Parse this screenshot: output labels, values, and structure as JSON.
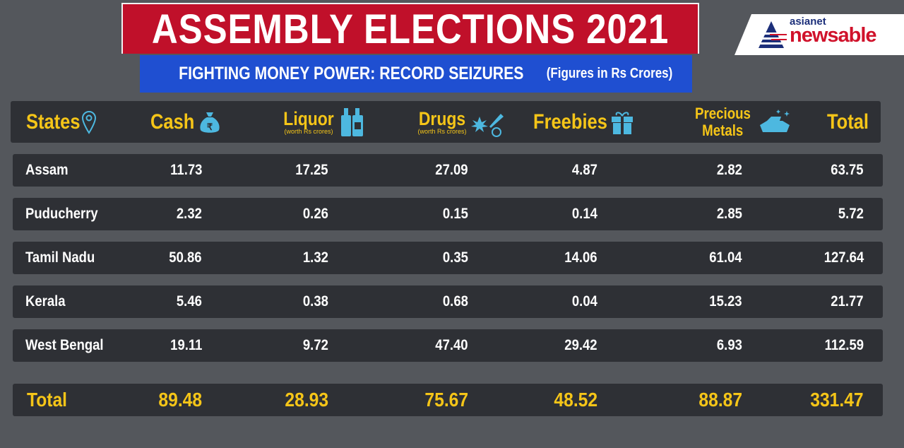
{
  "header": {
    "title": "ASSEMBLY ELECTIONS 2021",
    "subtitle": "FIGHTING MONEY POWER: RECORD SEIZURES",
    "units_note": "(Figures in Rs Crores)",
    "logo_top": "asianet",
    "logo_bottom": "newsable"
  },
  "colors": {
    "background": "#54575c",
    "row": "#2e3035",
    "accent": "#f5c518",
    "banner_red": "#c0102a",
    "banner_blue": "#1f4fd1",
    "icon": "#4db8e0"
  },
  "chart_data": {
    "type": "table",
    "title": "ASSEMBLY ELECTIONS 2021",
    "subtitle": "FIGHTING MONEY POWER: RECORD SEIZURES (Figures in Rs Crores)",
    "columns": [
      {
        "label": "States",
        "icon": "map-pin-icon"
      },
      {
        "label": "Cash",
        "icon": "money-bag-icon"
      },
      {
        "label": "Liquor",
        "note": "(worth Rs crores)",
        "icon": "bottles-icon"
      },
      {
        "label": "Drugs",
        "note": "(worth Rs crores)",
        "icon": "drugs-icon"
      },
      {
        "label": "Freebies",
        "icon": "gift-icon"
      },
      {
        "label": "Precious",
        "label2": "Metals",
        "icon": "gold-bars-icon"
      },
      {
        "label": "Total"
      }
    ],
    "rows": [
      [
        "Assam",
        "11.73",
        "17.25",
        "27.09",
        "4.87",
        "2.82",
        "63.75"
      ],
      [
        "Puducherry",
        "2.32",
        "0.26",
        "0.15",
        "0.14",
        "2.85",
        "5.72"
      ],
      [
        "Tamil Nadu",
        "50.86",
        "1.32",
        "0.35",
        "14.06",
        "61.04",
        "127.64"
      ],
      [
        "Kerala",
        "5.46",
        "0.38",
        "0.68",
        "0.04",
        "15.23",
        "21.77"
      ],
      [
        "West Bengal",
        "19.11",
        "9.72",
        "47.40",
        "29.42",
        "6.93",
        "112.59"
      ]
    ],
    "total_row": [
      "Total",
      "89.48",
      "28.93",
      "75.67",
      "48.52",
      "88.87",
      "331.47"
    ]
  }
}
